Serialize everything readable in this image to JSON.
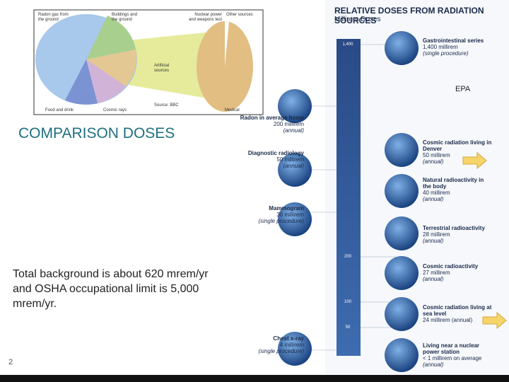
{
  "pie_panel": {
    "labels": [
      "Radon gas from the ground",
      "Buildings and the ground",
      "Nuclear power and weapons test",
      "Other sources",
      "Artificial sources",
      "Source: BBC",
      "Food and drink",
      "Cosmic rays",
      "Medical"
    ]
  },
  "slide": {
    "heading": "COMPARISON DOSES",
    "body": "Total background is about 620 mrem/yr and OSHA occupational limit is 5,000 mrem/yr.",
    "page_number": "2",
    "note": "EPA"
  },
  "infographic": {
    "title": "RELATIVE DOSES FROM RADIATION SOURCES",
    "axis_label": "Millirem Doses",
    "scale": [
      "1,400",
      "200",
      "100",
      "50"
    ],
    "left_items": [
      {
        "name": "Radon in average home",
        "dose": "200 millirem",
        "period": "(annual)"
      },
      {
        "name": "Diagnostic radiology",
        "dose": "50 millirem",
        "period": "(annual)"
      },
      {
        "name": "Mammogram",
        "dose": "30 millirem",
        "period": "(single procedure)"
      },
      {
        "name": "Chest x-ray",
        "dose": "4 millirem",
        "period": "(single procedure)"
      }
    ],
    "right_items": [
      {
        "name": "Gastrointestinal series",
        "dose": "1,400 millirem",
        "period": "(single procedure)"
      },
      {
        "name": "Cosmic radiation living in Denver",
        "dose": "50 millirem",
        "period": "(annual)"
      },
      {
        "name": "Natural radioactivity in the body",
        "dose": "40 millirem",
        "period": "(annual)"
      },
      {
        "name": "Terrestrial radioactivity",
        "dose": "28 millirem",
        "period": "(annual)"
      },
      {
        "name": "Cosmic radioactivity",
        "dose": "27 millirem",
        "period": "(annual)"
      },
      {
        "name": "Cosmic radiation living at sea level",
        "dose": "24 millirem (annual)",
        "period": null
      },
      {
        "name": "Living near a nuclear power station",
        "dose": "< 1 millirem on average",
        "period": "(annual)"
      }
    ]
  }
}
